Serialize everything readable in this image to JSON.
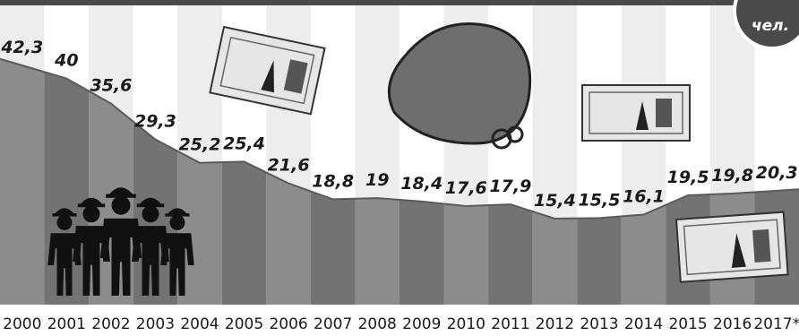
{
  "unit_label": "чел.",
  "chart_data": {
    "type": "area",
    "title": "",
    "xlabel": "",
    "ylabel": "",
    "ylim": [
      0,
      50
    ],
    "grid": false,
    "categories": [
      "2000",
      "2001",
      "2002",
      "2003",
      "2004",
      "2005",
      "2006",
      "2007",
      "2008",
      "2009",
      "2010",
      "2011",
      "2012",
      "2013",
      "2014",
      "2015",
      "2016",
      "2017*"
    ],
    "value_labels": [
      "42,3",
      "40",
      "35,6",
      "29,3",
      "25,2",
      "25,4",
      "21,6",
      "18,8",
      "19",
      "18,4",
      "17,6",
      "17,9",
      "15,4",
      "15,5",
      "16,1",
      "19,5",
      "19,8",
      "20,3"
    ],
    "series": [
      {
        "values": [
          42.3,
          40,
          35.6,
          29.3,
          25.2,
          25.4,
          21.6,
          18.8,
          19,
          18.4,
          17.6,
          17.9,
          15.4,
          15.5,
          16.1,
          19.5,
          19.8,
          20.3
        ]
      }
    ],
    "colors": {
      "stripe_light": "#ededed",
      "stripe_white": "#ffffff",
      "area_a": "#8c8c8c",
      "area_b": "#737373",
      "line": "#5a5a5a",
      "badge": "#4a4a4a"
    }
  },
  "illustrations": [
    {
      "name": "banknote-500",
      "icon": "banknote-icon"
    },
    {
      "name": "purse",
      "icon": "purse-icon"
    },
    {
      "name": "workers-group",
      "icon": "workers-icon"
    }
  ]
}
